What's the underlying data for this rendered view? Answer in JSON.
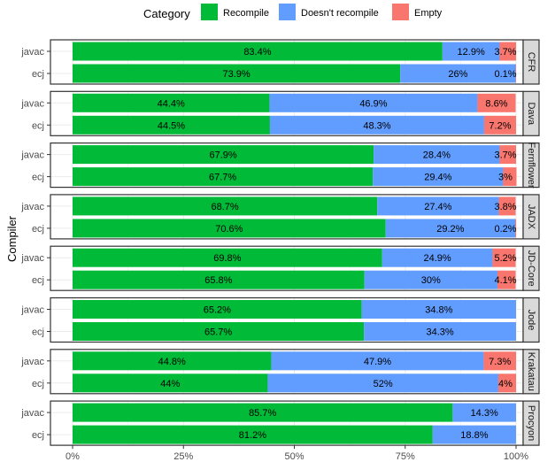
{
  "chart_data": {
    "type": "bar",
    "orientation": "horizontal",
    "stacked": true,
    "ylabel": "Compiler",
    "xlabel": "",
    "xlim": [
      0,
      1
    ],
    "x_ticks": [
      "0%",
      "25%",
      "50%",
      "75%",
      "100%"
    ],
    "grid": true,
    "legend": {
      "title": "Category",
      "position": "top",
      "entries": [
        {
          "name": "Recompile",
          "color": "#00ba38"
        },
        {
          "name": "Doesn't recompile",
          "color": "#619cff"
        },
        {
          "name": "Empty",
          "color": "#f8766d"
        }
      ]
    },
    "categories": [
      "javac",
      "ecj"
    ],
    "facets": [
      {
        "name": "CFR",
        "rows": [
          {
            "compiler": "javac",
            "values": [
              83.4,
              12.9,
              3.7
            ],
            "labels": [
              "83.4%",
              "12.9%",
              "3.7%"
            ]
          },
          {
            "compiler": "ecj",
            "values": [
              73.9,
              26,
              0.1
            ],
            "labels": [
              "73.9%",
              "26%",
              "0.1%"
            ]
          }
        ]
      },
      {
        "name": "Dava",
        "rows": [
          {
            "compiler": "javac",
            "values": [
              44.4,
              46.9,
              8.6
            ],
            "labels": [
              "44.4%",
              "46.9%",
              "8.6%"
            ]
          },
          {
            "compiler": "ecj",
            "values": [
              44.5,
              48.3,
              7.2
            ],
            "labels": [
              "44.5%",
              "48.3%",
              "7.2%"
            ]
          }
        ]
      },
      {
        "name": "Fernflower",
        "rows": [
          {
            "compiler": "javac",
            "values": [
              67.9,
              28.4,
              3.7
            ],
            "labels": [
              "67.9%",
              "28.4%",
              "3.7%"
            ]
          },
          {
            "compiler": "ecj",
            "values": [
              67.7,
              29.4,
              3
            ],
            "labels": [
              "67.7%",
              "29.4%",
              "3%"
            ]
          }
        ]
      },
      {
        "name": "JADX",
        "rows": [
          {
            "compiler": "javac",
            "values": [
              68.7,
              27.4,
              3.8
            ],
            "labels": [
              "68.7%",
              "27.4%",
              "3.8%"
            ]
          },
          {
            "compiler": "ecj",
            "values": [
              70.6,
              29.2,
              0.2
            ],
            "labels": [
              "70.6%",
              "29.2%",
              "0.2%"
            ]
          }
        ]
      },
      {
        "name": "JD-Core",
        "rows": [
          {
            "compiler": "javac",
            "values": [
              69.8,
              24.9,
              5.2
            ],
            "labels": [
              "69.8%",
              "24.9%",
              "5.2%"
            ]
          },
          {
            "compiler": "ecj",
            "values": [
              65.8,
              30,
              4.1
            ],
            "labels": [
              "65.8%",
              "30%",
              "4.1%"
            ]
          }
        ]
      },
      {
        "name": "Jode",
        "rows": [
          {
            "compiler": "javac",
            "values": [
              65.2,
              34.8,
              0
            ],
            "labels": [
              "65.2%",
              "34.8%",
              ""
            ]
          },
          {
            "compiler": "ecj",
            "values": [
              65.7,
              34.3,
              0
            ],
            "labels": [
              "65.7%",
              "34.3%",
              ""
            ]
          }
        ]
      },
      {
        "name": "Krakatau",
        "rows": [
          {
            "compiler": "javac",
            "values": [
              44.8,
              47.9,
              7.3
            ],
            "labels": [
              "44.8%",
              "47.9%",
              "7.3%"
            ]
          },
          {
            "compiler": "ecj",
            "values": [
              44,
              52,
              4
            ],
            "labels": [
              "44%",
              "52%",
              "4%"
            ]
          }
        ]
      },
      {
        "name": "Procyon",
        "rows": [
          {
            "compiler": "javac",
            "values": [
              85.7,
              14.3,
              0
            ],
            "labels": [
              "85.7%",
              "14.3%",
              ""
            ]
          },
          {
            "compiler": "ecj",
            "values": [
              81.2,
              18.8,
              0
            ],
            "labels": [
              "81.2%",
              "18.8%",
              ""
            ]
          }
        ]
      }
    ]
  }
}
